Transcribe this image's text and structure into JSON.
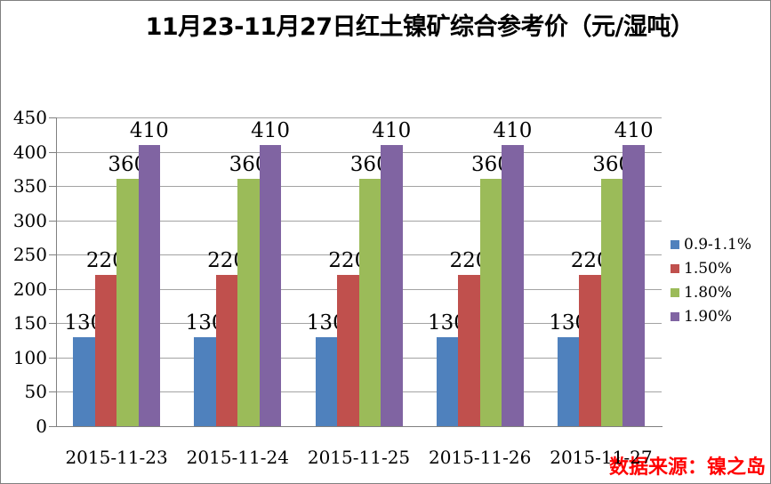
{
  "source_note": "数据来源：镍之岛",
  "colors": {
    "series_blue": "#4F81BD",
    "series_red": "#C0504D",
    "series_green": "#9BBB59",
    "series_purple": "#8064A2",
    "gridline": "#A3A3A3",
    "axis": "#808080",
    "source_text": "#FF0000",
    "label_text": "#000000"
  },
  "chart_data": {
    "type": "bar",
    "title": "11月23-11月27日红土镍矿综合参考价（元/湿吨）",
    "categories": [
      "2015-11-23",
      "2015-11-24",
      "2015-11-25",
      "2015-11-26",
      "2015-11-27"
    ],
    "series": [
      {
        "name": "0.9-1.1%",
        "color": "#4F81BD",
        "values": [
          130,
          130,
          130,
          130,
          130
        ]
      },
      {
        "name": "1.50%",
        "color": "#C0504D",
        "values": [
          220,
          220,
          220,
          220,
          220
        ]
      },
      {
        "name": "1.80%",
        "color": "#9BBB59",
        "values": [
          360,
          360,
          360,
          360,
          360
        ]
      },
      {
        "name": "1.90%",
        "color": "#8064A2",
        "values": [
          410,
          410,
          410,
          410,
          410
        ]
      }
    ],
    "xlabel": "",
    "ylabel": "",
    "ylim": [
      0,
      450
    ],
    "yticks": [
      0,
      50,
      100,
      150,
      200,
      250,
      300,
      350,
      400,
      450
    ],
    "grid": true,
    "legend_position": "right",
    "data_labels": true
  }
}
